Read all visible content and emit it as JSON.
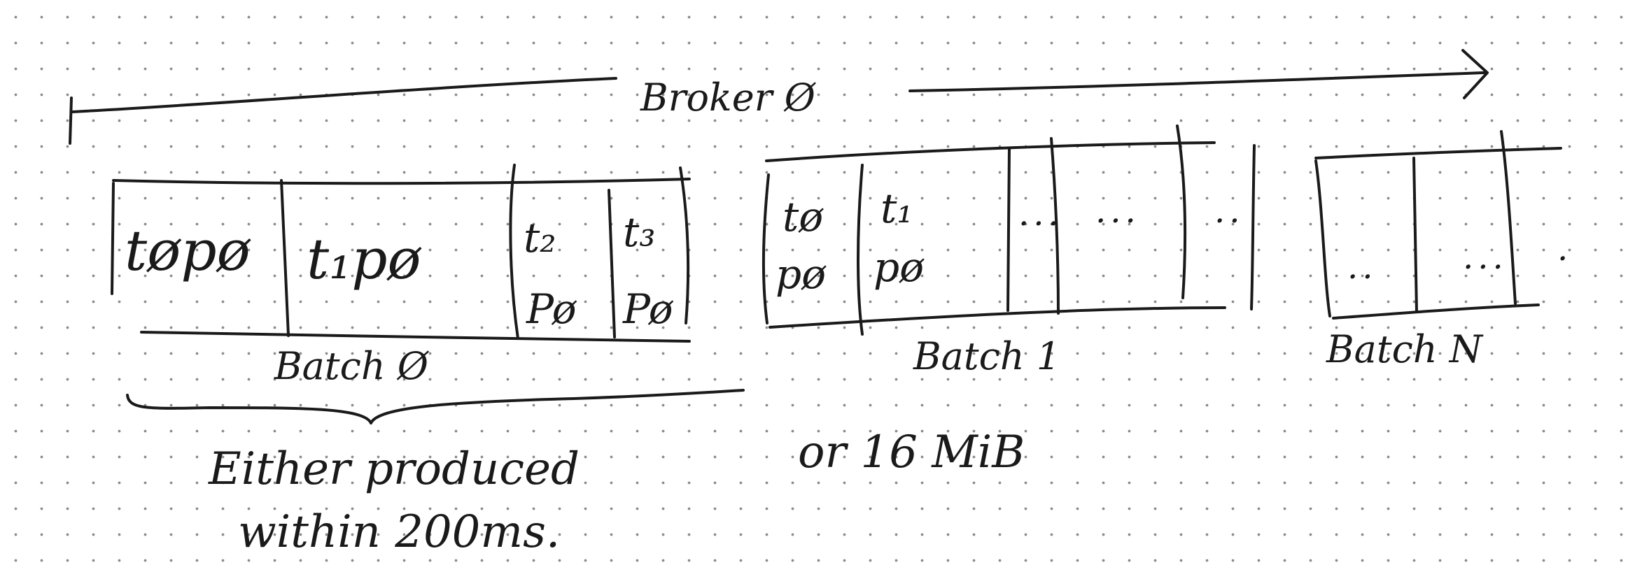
{
  "broker": {
    "label": "Broker Ø"
  },
  "batches": [
    {
      "label": "Batch Ø",
      "cells": [
        {
          "t": "tøpø"
        },
        {
          "t": "t₁pø"
        },
        {
          "t": "t₂",
          "p": "Pø"
        },
        {
          "t": "t₃",
          "p": "Pø"
        }
      ]
    },
    {
      "label": "Batch 1",
      "cells": [
        {
          "t": "tø",
          "p": "pø"
        },
        {
          "t": "t₁",
          "p": "pø"
        },
        {
          "dots": "..."
        },
        {
          "dots": "..."
        }
      ],
      "trailing_dots": ".."
    },
    {
      "label": "Batch N",
      "cells": [
        {
          "dots": ".."
        },
        {
          "dots": "..."
        }
      ],
      "trailing_dots": "."
    }
  ],
  "notes": {
    "line1": "Either produced",
    "line2": "within 200ms.",
    "alt": "or 16 MiB"
  }
}
